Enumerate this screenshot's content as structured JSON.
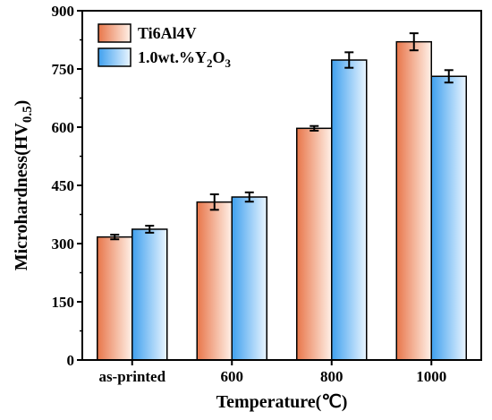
{
  "chart_data": {
    "type": "bar",
    "xlabel": "Temperature(℃)",
    "ylabel": {
      "main": "Microhardness(HV",
      "sub": "0.5",
      "close": ")"
    },
    "categories": [
      "as-printed",
      "600",
      "800",
      "1000"
    ],
    "ylim": [
      0,
      900
    ],
    "yticks": [
      0,
      150,
      300,
      450,
      600,
      750,
      900
    ],
    "grid": false,
    "legend_position": "top-left",
    "series": [
      {
        "name": "Ti6Al4V",
        "legend_parts": [
          {
            "t": "Ti6Al4V"
          }
        ],
        "values": [
          317,
          407,
          597,
          820
        ],
        "errors": [
          6,
          20,
          6,
          22
        ],
        "color_dark": "#e8764a",
        "color_light": "#fff1e8"
      },
      {
        "name": "1.0wt.%Y2O3",
        "legend_parts": [
          {
            "t": "1.0wt.%Y"
          },
          {
            "t": "2",
            "sub": true
          },
          {
            "t": "O"
          },
          {
            "t": "3",
            "sub": true
          }
        ],
        "values": [
          337,
          420,
          773,
          731
        ],
        "errors": [
          9,
          12,
          20,
          16
        ],
        "color_dark": "#3fa0ee",
        "color_light": "#eaf5ff"
      }
    ]
  }
}
